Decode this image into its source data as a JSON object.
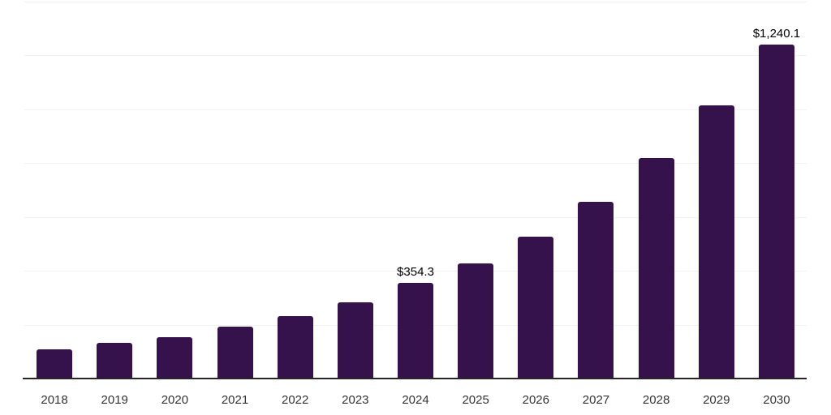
{
  "chart_data": {
    "type": "bar",
    "title": "",
    "xlabel": "",
    "ylabel": "",
    "categories": [
      "2018",
      "2019",
      "2020",
      "2021",
      "2022",
      "2023",
      "2024",
      "2025",
      "2026",
      "2027",
      "2028",
      "2029",
      "2030"
    ],
    "values": [
      109,
      132,
      154,
      192,
      233,
      283,
      354.3,
      428,
      528,
      655,
      818,
      1014,
      1240.1
    ],
    "data_labels": {
      "2024": "$354.3",
      "2030": "$1,240.1"
    },
    "value_prefix": "$",
    "ylim": [
      0,
      1400
    ],
    "gridline_step": 200,
    "grid": true,
    "legend": false,
    "y_axis_labels_visible": false,
    "colors": {
      "bar": "#35124B",
      "grid": "#f2f2f2",
      "axis": "#262626",
      "tick_label": "#333333",
      "data_label": "#000000",
      "background": "#ffffff"
    }
  }
}
